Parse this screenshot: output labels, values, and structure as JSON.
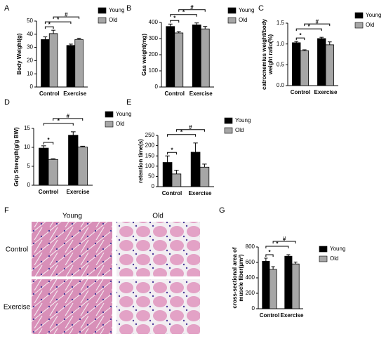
{
  "chart_data": [
    {
      "type": "bar",
      "label": "A",
      "y_label": [
        "Body Weight(g)"
      ],
      "categories": [
        "Control",
        "Exercise"
      ],
      "series": [
        {
          "name": "Young",
          "color": "#000000",
          "values": [
            36,
            31.5
          ],
          "errors": [
            2,
            1
          ]
        },
        {
          "name": "Old",
          "color": "#a6a6a6",
          "values": [
            40.5,
            36
          ],
          "errors": [
            2.5,
            1
          ]
        }
      ],
      "ylim": [
        0,
        50
      ],
      "yticks": [
        0,
        10,
        20,
        30,
        40,
        50
      ],
      "annotations": [
        "*",
        "*",
        "#"
      ]
    },
    {
      "type": "bar",
      "label": "B",
      "y_label": [
        "Gas weight(mg)"
      ],
      "categories": [
        "Control",
        "Exercise"
      ],
      "series": [
        {
          "name": "Young",
          "color": "#000000",
          "values": [
            375,
            385
          ],
          "errors": [
            15,
            12
          ]
        },
        {
          "name": "Old",
          "color": "#a6a6a6",
          "values": [
            335,
            360
          ],
          "errors": [
            8,
            15
          ]
        }
      ],
      "ylim": [
        0,
        400
      ],
      "yticks": [
        0,
        100,
        200,
        300,
        400
      ],
      "annotations": [
        "*",
        "*",
        "#"
      ]
    },
    {
      "type": "bar",
      "label": "C",
      "y_label": [
        "catrocnemius weight/body",
        "weight ratio(%)"
      ],
      "categories": [
        "Control",
        "Exercise"
      ],
      "series": [
        {
          "name": "Young",
          "color": "#000000",
          "values": [
            1.03,
            1.13
          ],
          "errors": [
            0.03,
            0.03
          ]
        },
        {
          "name": "Old",
          "color": "#a6a6a6",
          "values": [
            0.84,
            0.98
          ],
          "errors": [
            0.02,
            0.07
          ]
        }
      ],
      "ylim": [
        0,
        1.5
      ],
      "yticks": [
        {
          "value": 0,
          "label": "0.0"
        },
        0.5,
        {
          "value": 1,
          "label": "1.0"
        },
        1.5
      ],
      "annotations": [
        "*",
        "*",
        "#"
      ]
    },
    {
      "type": "bar",
      "label": "D",
      "y_label": [
        "Grip Strength(g/g BW)"
      ],
      "categories": [
        "Control",
        "Exercise"
      ],
      "series": [
        {
          "name": "Young",
          "color": "#000000",
          "values": [
            9.8,
            13.2
          ],
          "errors": [
            0.6,
            0.9
          ]
        },
        {
          "name": "Old",
          "color": "#a6a6a6",
          "values": [
            6.8,
            10.1
          ],
          "errors": [
            0.2,
            0.2
          ]
        }
      ],
      "ylim": [
        0,
        15
      ],
      "yticks": [
        0,
        5,
        10,
        15
      ],
      "annotations": [
        "*",
        "*",
        "#"
      ]
    },
    {
      "type": "bar",
      "label": "E",
      "y_label": [
        "retention time(s)"
      ],
      "categories": [
        "Control",
        "Exercise"
      ],
      "series": [
        {
          "name": "Young",
          "color": "#000000",
          "values": [
            118,
            168
          ],
          "errors": [
            32,
            45
          ]
        },
        {
          "name": "Old",
          "color": "#a6a6a6",
          "values": [
            62,
            95
          ],
          "errors": [
            18,
            15
          ]
        }
      ],
      "ylim": [
        0,
        250
      ],
      "yticks": [
        0,
        50,
        100,
        150,
        200,
        250
      ],
      "annotations": [
        "*",
        "*",
        "#"
      ]
    },
    {
      "type": "bar",
      "label": "G",
      "y_label": [
        "cross-sectional area of",
        "muscle fiber(μm²)"
      ],
      "categories": [
        "Control",
        "Exercise"
      ],
      "series": [
        {
          "name": "Young",
          "color": "#000000",
          "values": [
            615,
            680
          ],
          "errors": [
            40,
            20
          ]
        },
        {
          "name": "Old",
          "color": "#a6a6a6",
          "values": [
            510,
            580
          ],
          "errors": [
            35,
            25
          ]
        }
      ],
      "ylim": [
        0,
        800
      ],
      "yticks": [
        0,
        200,
        400,
        600,
        800
      ],
      "annotations": [
        "*",
        "*",
        "#"
      ]
    }
  ],
  "figure_f": {
    "label": "F",
    "columns": [
      "Young",
      "Old"
    ],
    "rows": [
      "Control",
      "Exercise"
    ]
  }
}
